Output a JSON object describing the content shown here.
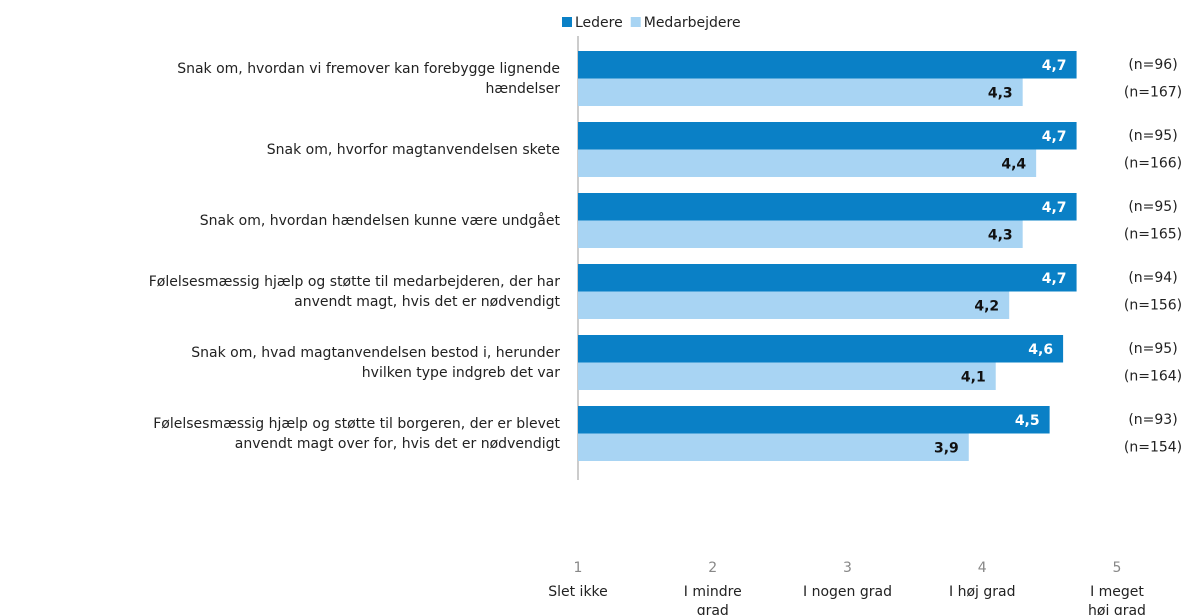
{
  "chart_data": {
    "type": "bar",
    "orientation": "horizontal",
    "categories": [
      "Snak om, hvordan vi fremover kan forebygge lignende\nhændelser",
      "Snak om, hvorfor magtanvendelsen skete",
      "Snak om, hvordan hændelsen kunne være undgået",
      "Følelsesmæssig hjælp og støtte til medarbejderen, der har\nanvendt magt, hvis det er nødvendigt",
      "Snak om, hvad magtanvendelsen bestod i, herunder\nhvilken type indgreb det var",
      "Følelsesmæssig hjælp og støtte til borgeren, der er blevet\nanvendt magt over for, hvis det er nødvendigt"
    ],
    "series": [
      {
        "name": "Ledere",
        "color": "#0a80c6",
        "values": [
          4.7,
          4.7,
          4.7,
          4.7,
          4.6,
          4.5
        ],
        "value_labels": [
          "4,7",
          "4,7",
          "4,7",
          "4,7",
          "4,6",
          "4,5"
        ],
        "n_labels": [
          "(n=96)",
          "(n=95)",
          "(n=95)",
          "(n=94)",
          "(n=95)",
          "(n=93)"
        ]
      },
      {
        "name": "Medarbejdere",
        "color": "#a8d4f3",
        "values": [
          4.3,
          4.4,
          4.3,
          4.2,
          4.1,
          3.9
        ],
        "value_labels": [
          "4,3",
          "4,4",
          "4,3",
          "4,2",
          "4,1",
          "3,9"
        ],
        "n_labels": [
          "(n=167)",
          "(n=166)",
          "(n=165)",
          "(n=156)",
          "(n=164)",
          "(n=154)"
        ]
      }
    ],
    "xlim": [
      1,
      5
    ],
    "xticks": [
      1,
      2,
      3,
      4,
      5
    ],
    "xtick_descriptions": [
      "Slet ikke",
      "I mindre\ngrad",
      "I nogen grad",
      "I høj grad",
      "I meget\nhøj grad"
    ],
    "legend": "top"
  }
}
